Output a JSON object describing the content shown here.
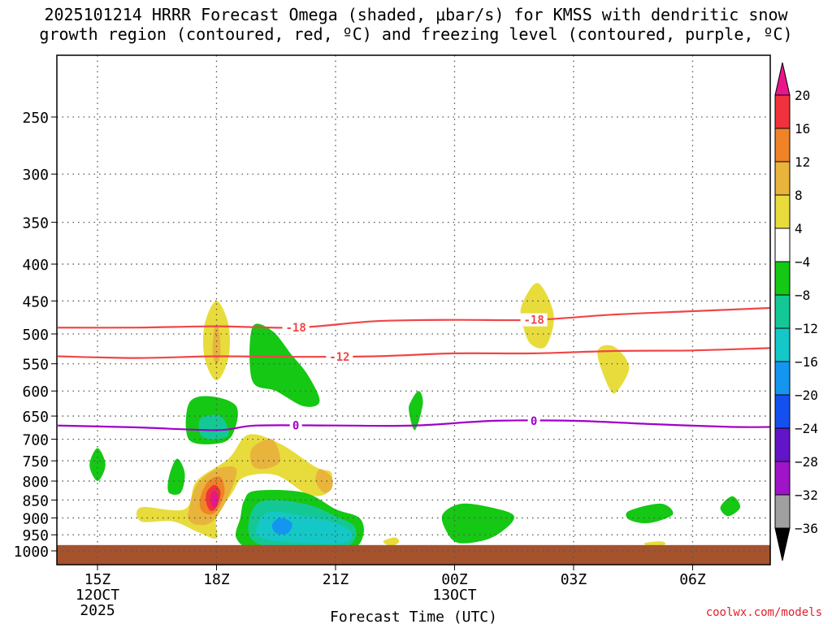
{
  "chart_data": {
    "type": "heatmap",
    "title": "2025101214 HRRR Forecast Omega (shaded, μbar/s) for KMSS with dendritic snow\ngrowth region (contoured, red, ºC) and freezing level (contoured, purple, ºC)",
    "xlabel": "Forecast Time (UTC)",
    "ylabel": "",
    "x_ticks": [
      {
        "label": "15Z",
        "sub1": "12OCT",
        "sub2": "2025",
        "hour": 0
      },
      {
        "label": "18Z",
        "sub1": "",
        "sub2": "",
        "hour": 3
      },
      {
        "label": "21Z",
        "sub1": "",
        "sub2": "",
        "hour": 6
      },
      {
        "label": "00Z",
        "sub1": "13OCT",
        "sub2": "",
        "hour": 9
      },
      {
        "label": "03Z",
        "sub1": "",
        "sub2": "",
        "hour": 12
      },
      {
        "label": "06Z",
        "sub1": "",
        "sub2": "",
        "hour": 15
      }
    ],
    "xlim": [
      -1.0,
      17.0
    ],
    "y_ticks": [
      250,
      300,
      350,
      400,
      450,
      500,
      550,
      600,
      650,
      700,
      750,
      800,
      850,
      900,
      950,
      1000
    ],
    "ylim": [
      200,
      1020
    ],
    "ground_level_hpa": 1010,
    "colorbar": {
      "labels": [
        "20",
        "16",
        "12",
        "8",
        "4",
        "−4",
        "−8",
        "−12",
        "−16",
        "−20",
        "−24",
        "−28",
        "−32",
        "−36"
      ],
      "colors": [
        "#e8168a",
        "#f0323c",
        "#f08228",
        "#e8b43c",
        "#e8dc3c",
        "#ffffff",
        "#14c814",
        "#14c896",
        "#14c8c8",
        "#1496f0",
        "#1450f0",
        "#6414c8",
        "#a014c8",
        "#a0a0a0",
        "#000000"
      ]
    },
    "contours": [
      {
        "name": "dendritic -18C",
        "color": "#f04646",
        "label": "-18",
        "label_hour": 5.0,
        "label_index": 0,
        "points": [
          [
            -1.0,
            490
          ],
          [
            1,
            490
          ],
          [
            3,
            488
          ],
          [
            5,
            490
          ],
          [
            7,
            480
          ],
          [
            9,
            478
          ],
          [
            11,
            478
          ],
          [
            13,
            470
          ],
          [
            15,
            465
          ],
          [
            17,
            460
          ]
        ]
      },
      {
        "name": "dendritic -12C",
        "color": "#f04646",
        "label": "-12",
        "label_hour": 6.0,
        "label_index": 0,
        "points": [
          [
            -1.0,
            537
          ],
          [
            1,
            540
          ],
          [
            3,
            537
          ],
          [
            5,
            538
          ],
          [
            7,
            537
          ],
          [
            9,
            532
          ],
          [
            11,
            532
          ],
          [
            13,
            528
          ],
          [
            15,
            527
          ],
          [
            17,
            523
          ]
        ]
      },
      {
        "name": "freezing level 0C",
        "color": "#a000c8",
        "label": "0",
        "label_hour": 5.0,
        "label_index": 0,
        "points": [
          [
            -1.0,
            670
          ],
          [
            1,
            674
          ],
          [
            3,
            680
          ],
          [
            4,
            670
          ],
          [
            6,
            670
          ],
          [
            8,
            670
          ],
          [
            10,
            660
          ],
          [
            12,
            660
          ],
          [
            14,
            667
          ],
          [
            16,
            673
          ],
          [
            17,
            673
          ]
        ]
      }
    ],
    "contour_labels": [
      {
        "text": "-18",
        "color": "#f04646",
        "hour": 5.0,
        "hpa": 490
      },
      {
        "text": "-18",
        "color": "#f04646",
        "hour": 11.0,
        "hpa": 478
      },
      {
        "text": "-12",
        "color": "#f04646",
        "hour": 6.1,
        "hpa": 538
      },
      {
        "text": "0",
        "color": "#a000c8",
        "hour": 5.0,
        "hpa": 670
      },
      {
        "text": "0",
        "color": "#a000c8",
        "hour": 11.0,
        "hpa": 660
      }
    ],
    "omega_blobs": [
      {
        "color": "#e8dc3c",
        "points": [
          [
            2.7,
            485
          ],
          [
            3.0,
            450
          ],
          [
            3.3,
            485
          ],
          [
            3.3,
            540
          ],
          [
            3.0,
            580
          ],
          [
            2.7,
            540
          ]
        ]
      },
      {
        "color": "#e8b43c",
        "points": [
          [
            2.95,
            490
          ],
          [
            3.05,
            490
          ],
          [
            3.1,
            530
          ],
          [
            3.0,
            550
          ],
          [
            2.9,
            530
          ]
        ]
      },
      {
        "color": "#14c814",
        "points": [
          [
            3.9,
            490
          ],
          [
            4.4,
            495
          ],
          [
            4.9,
            535
          ],
          [
            5.3,
            570
          ],
          [
            5.6,
            620
          ],
          [
            5.2,
            630
          ],
          [
            4.5,
            600
          ],
          [
            3.9,
            580
          ]
        ]
      },
      {
        "color": "#14c814",
        "points": [
          [
            2.3,
            625
          ],
          [
            2.8,
            610
          ],
          [
            3.5,
            630
          ],
          [
            3.4,
            690
          ],
          [
            3.0,
            710
          ],
          [
            2.3,
            700
          ]
        ]
      },
      {
        "color": "#14c896",
        "points": [
          [
            2.6,
            655
          ],
          [
            3.1,
            650
          ],
          [
            3.3,
            690
          ],
          [
            2.9,
            700
          ],
          [
            2.6,
            690
          ]
        ]
      },
      {
        "color": "#e8dc3c",
        "points": [
          [
            1.1,
            870
          ],
          [
            2.2,
            875
          ],
          [
            2.5,
            800
          ],
          [
            3.3,
            745
          ],
          [
            3.8,
            690
          ],
          [
            4.6,
            710
          ],
          [
            5.5,
            765
          ],
          [
            5.9,
            780
          ],
          [
            5.8,
            830
          ],
          [
            5.3,
            835
          ],
          [
            4.5,
            785
          ],
          [
            3.7,
            790
          ],
          [
            3.4,
            830
          ],
          [
            3.0,
            900
          ],
          [
            3.0,
            960
          ],
          [
            2.5,
            940
          ],
          [
            1.9,
            910
          ],
          [
            1.1,
            910
          ]
        ]
      },
      {
        "color": "#e8b43c",
        "points": [
          [
            2.3,
            880
          ],
          [
            2.5,
            810
          ],
          [
            3.0,
            770
          ],
          [
            3.5,
            770
          ],
          [
            3.3,
            840
          ],
          [
            2.9,
            910
          ],
          [
            2.5,
            920
          ],
          [
            2.3,
            905
          ]
        ]
      },
      {
        "color": "#e8b43c",
        "points": [
          [
            3.9,
            720
          ],
          [
            4.4,
            700
          ],
          [
            4.6,
            750
          ],
          [
            4.2,
            770
          ],
          [
            3.9,
            760
          ]
        ]
      },
      {
        "color": "#e8b43c",
        "points": [
          [
            5.6,
            770
          ],
          [
            5.9,
            790
          ],
          [
            5.9,
            820
          ],
          [
            5.7,
            830
          ],
          [
            5.5,
            800
          ]
        ]
      },
      {
        "color": "#f08228",
        "points": [
          [
            2.6,
            840
          ],
          [
            2.8,
            800
          ],
          [
            3.1,
            790
          ],
          [
            3.2,
            830
          ],
          [
            3.0,
            880
          ],
          [
            2.8,
            890
          ],
          [
            2.6,
            875
          ]
        ]
      },
      {
        "color": "#f0323c",
        "points": [
          [
            2.75,
            830
          ],
          [
            2.95,
            810
          ],
          [
            3.1,
            830
          ],
          [
            3.0,
            870
          ],
          [
            2.85,
            880
          ],
          [
            2.75,
            860
          ]
        ]
      },
      {
        "color": "#e8168a",
        "points": [
          [
            2.85,
            840
          ],
          [
            2.95,
            825
          ],
          [
            3.05,
            845
          ],
          [
            3.0,
            865
          ],
          [
            2.9,
            870
          ]
        ]
      },
      {
        "color": "#14c814",
        "points": [
          [
            3.6,
            900
          ],
          [
            3.7,
            850
          ],
          [
            4.0,
            825
          ],
          [
            5.2,
            830
          ],
          [
            6.0,
            875
          ],
          [
            6.6,
            900
          ],
          [
            6.7,
            950
          ],
          [
            6.4,
            995
          ],
          [
            5.4,
            1000
          ],
          [
            4.0,
            1000
          ],
          [
            3.5,
            960
          ]
        ]
      },
      {
        "color": "#14c896",
        "points": [
          [
            3.8,
            930
          ],
          [
            4.1,
            855
          ],
          [
            5.2,
            860
          ],
          [
            6.0,
            895
          ],
          [
            6.5,
            930
          ],
          [
            6.3,
            985
          ],
          [
            5.2,
            985
          ],
          [
            4.1,
            980
          ]
        ]
      },
      {
        "color": "#14c8c8",
        "points": [
          [
            4.0,
            940
          ],
          [
            4.3,
            885
          ],
          [
            5.2,
            895
          ],
          [
            6.0,
            915
          ],
          [
            6.4,
            945
          ],
          [
            6.2,
            975
          ],
          [
            5.2,
            975
          ],
          [
            4.3,
            965
          ]
        ]
      },
      {
        "color": "#1496f0",
        "points": [
          [
            4.4,
            920
          ],
          [
            4.6,
            900
          ],
          [
            4.9,
            915
          ],
          [
            4.8,
            945
          ],
          [
            4.5,
            945
          ]
        ]
      },
      {
        "color": "#14c814",
        "points": [
          [
            -0.2,
            760
          ],
          [
            0.0,
            720
          ],
          [
            0.2,
            760
          ],
          [
            0.0,
            800
          ]
        ]
      },
      {
        "color": "#14c814",
        "points": [
          [
            1.8,
            790
          ],
          [
            2.0,
            745
          ],
          [
            2.2,
            780
          ],
          [
            2.1,
            830
          ],
          [
            1.8,
            830
          ]
        ]
      },
      {
        "color": "#14c814",
        "points": [
          [
            7.9,
            620
          ],
          [
            8.1,
            600
          ],
          [
            8.2,
            625
          ],
          [
            8.0,
            680
          ],
          [
            7.85,
            640
          ]
        ]
      },
      {
        "color": "#e8dc3c",
        "points": [
          [
            7.2,
            970
          ],
          [
            7.5,
            958
          ],
          [
            7.6,
            972
          ],
          [
            7.4,
            985
          ]
        ]
      },
      {
        "color": "#14c814",
        "points": [
          [
            8.7,
            890
          ],
          [
            9.2,
            860
          ],
          [
            10.1,
            875
          ],
          [
            10.5,
            895
          ],
          [
            10.3,
            930
          ],
          [
            9.8,
            965
          ],
          [
            9.1,
            975
          ],
          [
            8.8,
            940
          ]
        ]
      },
      {
        "color": "#e8dc3c",
        "points": [
          [
            10.7,
            455
          ],
          [
            11.1,
            425
          ],
          [
            11.5,
            470
          ],
          [
            11.3,
            520
          ],
          [
            10.9,
            515
          ],
          [
            10.7,
            480
          ]
        ]
      },
      {
        "color": "#e8dc3c",
        "points": [
          [
            12.6,
            530
          ],
          [
            13.0,
            520
          ],
          [
            13.4,
            555
          ],
          [
            13.1,
            600
          ],
          [
            12.9,
            595
          ]
        ]
      },
      {
        "color": "#14c814",
        "points": [
          [
            13.4,
            880
          ],
          [
            14.2,
            860
          ],
          [
            14.5,
            890
          ],
          [
            13.9,
            915
          ],
          [
            13.4,
            905
          ]
        ]
      },
      {
        "color": "#e8dc3c",
        "points": [
          [
            13.8,
            975
          ],
          [
            14.2,
            970
          ],
          [
            14.3,
            980
          ],
          [
            13.9,
            985
          ]
        ]
      },
      {
        "color": "#14c814",
        "points": [
          [
            15.7,
            870
          ],
          [
            16.0,
            840
          ],
          [
            16.2,
            870
          ],
          [
            15.9,
            895
          ]
        ]
      }
    ]
  },
  "credit": "coolwx.com/models"
}
